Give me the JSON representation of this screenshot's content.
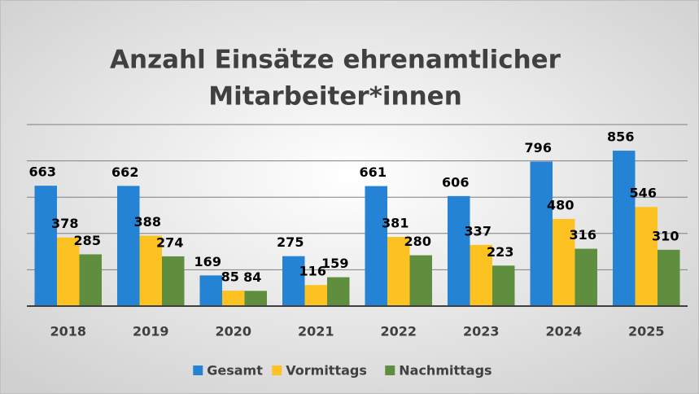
{
  "chart_data": {
    "type": "bar",
    "title": [
      "Anzahl Einsätze ehrenamtlicher",
      "Mitarbeiter*innen"
    ],
    "categories": [
      "2018",
      "2019",
      "2020",
      "2021",
      "2022",
      "2023",
      "2024",
      "2025"
    ],
    "series": [
      {
        "name": "Gesamt",
        "color": "#2483d4",
        "values": [
          663,
          662,
          169,
          275,
          661,
          606,
          796,
          856
        ]
      },
      {
        "name": "Vormittags",
        "color": "#fcc222",
        "values": [
          378,
          388,
          85,
          116,
          381,
          337,
          480,
          546
        ]
      },
      {
        "name": "Nachmittags",
        "color": "#5f8f3e",
        "values": [
          285,
          274,
          84,
          159,
          280,
          223,
          316,
          310
        ]
      }
    ],
    "ylim": [
      0,
      1000
    ],
    "yticks": [
      0,
      200,
      400,
      600,
      800,
      1000
    ],
    "grid": true,
    "legend": "bottom"
  }
}
